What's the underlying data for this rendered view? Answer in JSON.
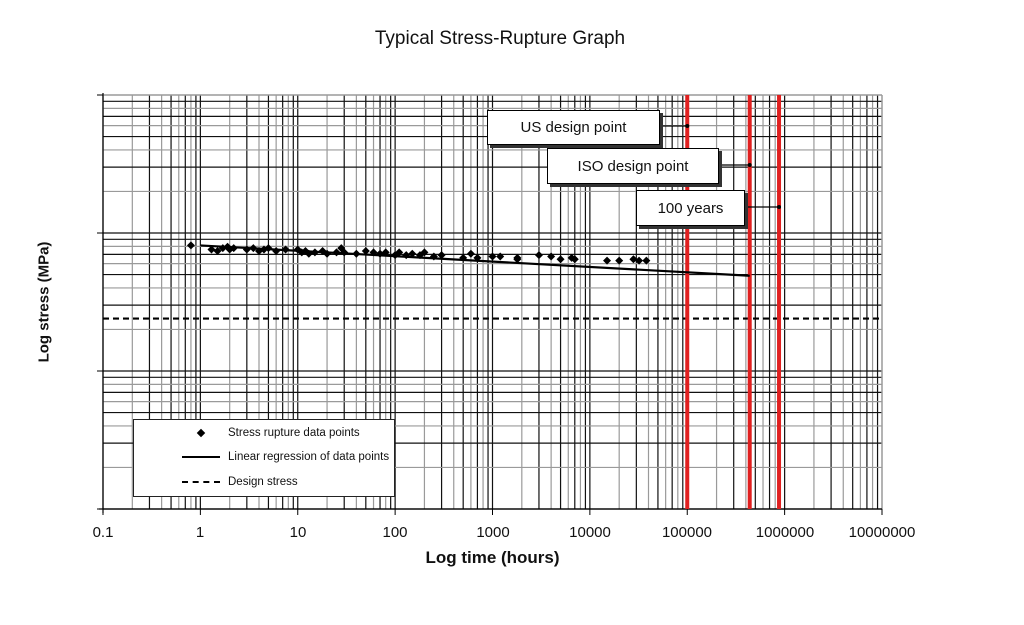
{
  "chart_data": {
    "type": "scatter",
    "title": "Typical Stress-Rupture Graph",
    "xlabel": "Log time (hours)",
    "ylabel": "Log stress (MPa)",
    "x_scale": "log",
    "y_scale": "log",
    "xlim": [
      0.1,
      10000000
    ],
    "x_ticks": [
      "0.1",
      "1",
      "10",
      "100",
      "1000",
      "10000",
      "100000",
      "1000000",
      "10000000"
    ],
    "y_ticks": [],
    "y_decades": 3,
    "grid": true,
    "legend_position": "lower-left",
    "legend": [
      {
        "label": "Stress rupture data points",
        "style": "diamond-marker"
      },
      {
        "label": "Linear regression of data points",
        "style": "solid-line"
      },
      {
        "label": "Design stress",
        "style": "dashed-line"
      }
    ],
    "series": [
      {
        "name": "Stress rupture data points",
        "type": "scatter",
        "marker": "diamond",
        "color": "#000000",
        "note": "y given in relative decades from plot bottom (0 = bottom, 3 = top); axis values not labeled",
        "points": [
          [
            0.8,
            1.91
          ],
          [
            1.3,
            1.88
          ],
          [
            1.5,
            1.87
          ],
          [
            1.7,
            1.89
          ],
          [
            1.9,
            1.9
          ],
          [
            2.0,
            1.88
          ],
          [
            2.2,
            1.89
          ],
          [
            3.0,
            1.88
          ],
          [
            3.5,
            1.89
          ],
          [
            4.0,
            1.87
          ],
          [
            4.5,
            1.88
          ],
          [
            5.0,
            1.89
          ],
          [
            6.0,
            1.87
          ],
          [
            7.5,
            1.88
          ],
          [
            10,
            1.88
          ],
          [
            11,
            1.86
          ],
          [
            12,
            1.87
          ],
          [
            13,
            1.85
          ],
          [
            15,
            1.86
          ],
          [
            18,
            1.87
          ],
          [
            20,
            1.85
          ],
          [
            25,
            1.86
          ],
          [
            28,
            1.89
          ],
          [
            30,
            1.86
          ],
          [
            40,
            1.85
          ],
          [
            50,
            1.87
          ],
          [
            60,
            1.86
          ],
          [
            70,
            1.85
          ],
          [
            80,
            1.86
          ],
          [
            100,
            1.84
          ],
          [
            110,
            1.86
          ],
          [
            130,
            1.84
          ],
          [
            150,
            1.85
          ],
          [
            180,
            1.84
          ],
          [
            200,
            1.86
          ],
          [
            250,
            1.83
          ],
          [
            300,
            1.84
          ],
          [
            500,
            1.82
          ],
          [
            600,
            1.85
          ],
          [
            700,
            1.82
          ],
          [
            1000,
            1.83
          ],
          [
            1200,
            1.83
          ],
          [
            1800,
            1.82
          ],
          [
            1800,
            1.81
          ],
          [
            3000,
            1.84
          ],
          [
            4000,
            1.83
          ],
          [
            5000,
            1.81
          ],
          [
            6500,
            1.82
          ],
          [
            7000,
            1.81
          ],
          [
            15000,
            1.8
          ],
          [
            20000,
            1.8
          ],
          [
            28000,
            1.81
          ],
          [
            32000,
            1.8
          ],
          [
            38000,
            1.8
          ]
        ]
      },
      {
        "name": "Linear regression of data points",
        "type": "line",
        "style": "solid",
        "color": "#000000",
        "points": [
          [
            1,
            1.91
          ],
          [
            438000,
            1.69
          ]
        ]
      },
      {
        "name": "Design stress",
        "type": "hline",
        "style": "dashed",
        "color": "#000000",
        "y": 1.38
      }
    ],
    "vertical_markers": [
      {
        "label": "US design point",
        "x": 100000,
        "color": "#e02020"
      },
      {
        "label": "ISO design point",
        "x": 438000,
        "color": "#e02020"
      },
      {
        "label": "100 years",
        "x": 876000,
        "color": "#e02020"
      }
    ]
  },
  "labels": {
    "title": "Typical Stress-Rupture Graph",
    "xlabel": "Log time (hours)",
    "ylabel": "Log stress (MPa)",
    "xticks": [
      "0.1",
      "1",
      "10",
      "100",
      "1000",
      "10000",
      "100000",
      "1000000",
      "10000000"
    ],
    "callouts": [
      "US design point",
      "ISO design point",
      "100 years"
    ],
    "legend": [
      "Stress rupture data points",
      "Linear regression of data points",
      "Design stress"
    ]
  },
  "colors": {
    "marker_line": "#e02020",
    "grid_major": "#111111",
    "grid_minor": "#9a9a9a"
  }
}
